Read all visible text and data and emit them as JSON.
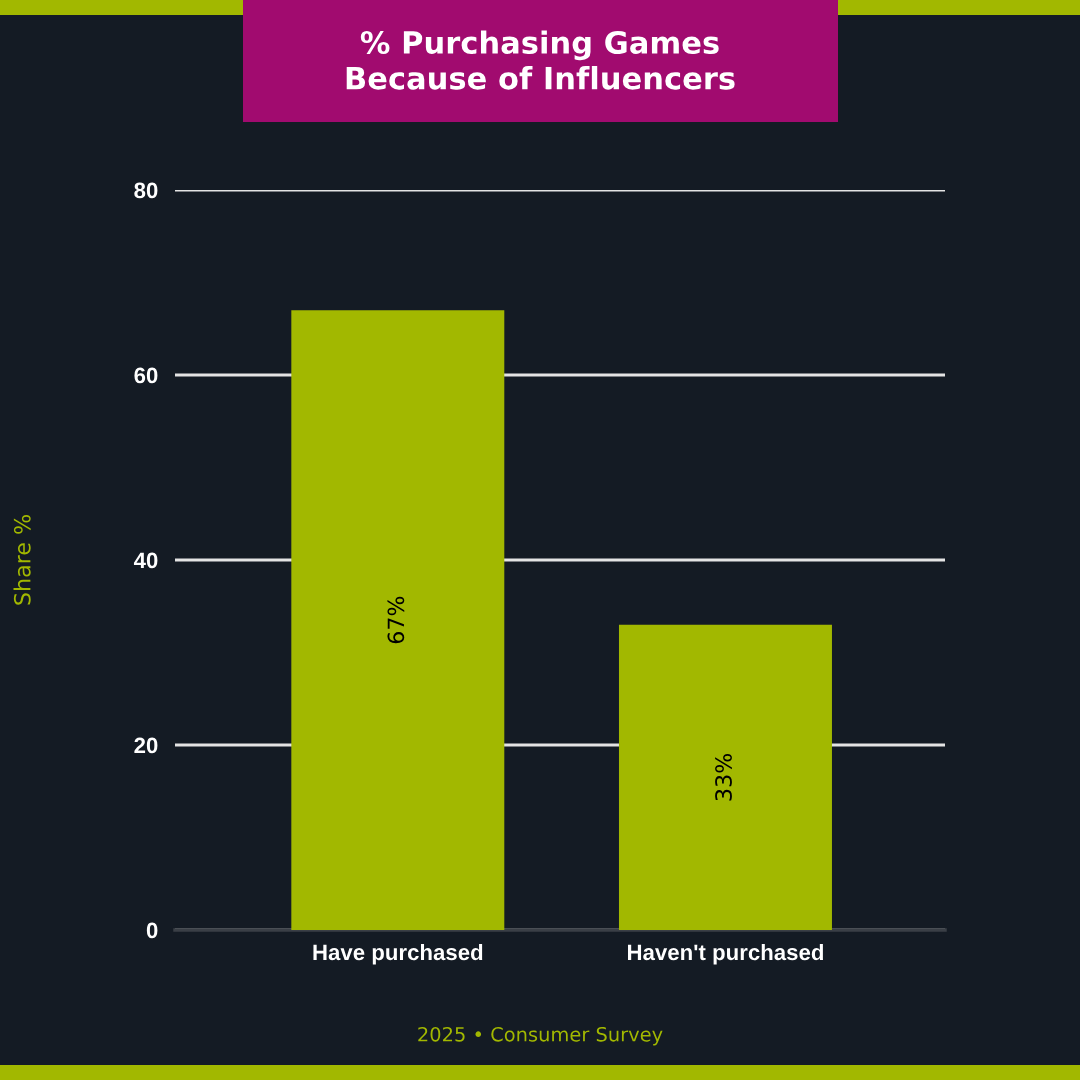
{
  "chart_data": {
    "type": "bar",
    "title": "% Purchasing Games\nBecause of Influencers",
    "ylabel": "Share %",
    "categories": [
      "Have purchased",
      "Haven't purchased"
    ],
    "values": [
      67,
      33
    ],
    "color": "#a2b800",
    "value_labels": [
      "67%",
      "33%"
    ],
    "ylim": [
      0,
      80
    ],
    "yticks": [
      0,
      20,
      40,
      60,
      80
    ],
    "grid": "y",
    "annotations": [
      "2025 • Consumer Survey"
    ]
  }
}
